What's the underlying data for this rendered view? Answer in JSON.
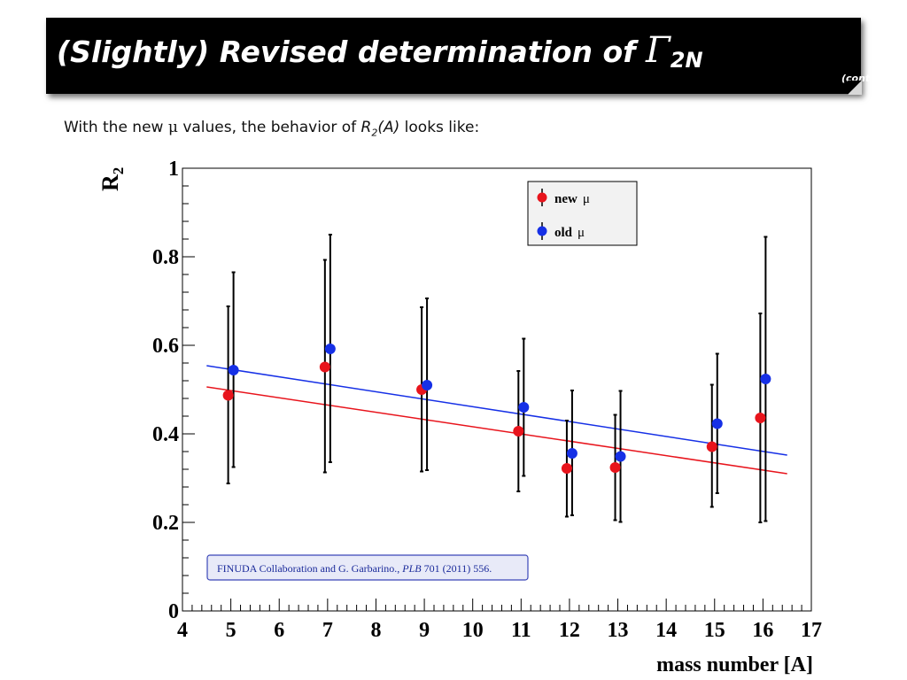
{
  "header": {
    "title_prefix": "(Slightly) Revised determination of ",
    "gamma_symbol": "Γ",
    "gamma_subscript": "2N",
    "contd": "(cont’d)"
  },
  "subtitle": {
    "part1": "With the new ",
    "mu": "μ",
    "part2": " values, the behavior of ",
    "r": "R",
    "r_sub": "2",
    "arg": "(A)",
    "part3": " looks like:"
  },
  "citation": {
    "authors": "FINUDA Collaboration and G. Garbarino., ",
    "journal": "PLB",
    "ref": " 701 (2011) 556."
  },
  "chart_data": {
    "type": "scatter",
    "ylabel": "R",
    "ylabel_sub": "2",
    "xlabel": "mass number [A]",
    "xlim": [
      4,
      17
    ],
    "ylim": [
      0,
      1
    ],
    "x_ticks": [
      "4",
      "5",
      "6",
      "7",
      "8",
      "9",
      "10",
      "11",
      "12",
      "13",
      "14",
      "15",
      "16",
      "17"
    ],
    "y_ticks": [
      "0",
      "0.2",
      "0.4",
      "0.6",
      "0.8",
      "1"
    ],
    "y_tick_values": [
      0,
      0.2,
      0.4,
      0.6,
      0.8,
      1
    ],
    "legend_position": "top-right",
    "series": [
      {
        "name": "new",
        "name_mu": "μ",
        "color": "#e8141c",
        "points": [
          {
            "x": 5,
            "y": 0.487,
            "lo": 0.288,
            "hi": 0.688
          },
          {
            "x": 7,
            "y": 0.551,
            "lo": 0.313,
            "hi": 0.793
          },
          {
            "x": 9,
            "y": 0.5,
            "lo": 0.315,
            "hi": 0.686
          },
          {
            "x": 11,
            "y": 0.406,
            "lo": 0.27,
            "hi": 0.542
          },
          {
            "x": 12,
            "y": 0.322,
            "lo": 0.213,
            "hi": 0.43
          },
          {
            "x": 13,
            "y": 0.324,
            "lo": 0.205,
            "hi": 0.443
          },
          {
            "x": 15,
            "y": 0.371,
            "lo": 0.235,
            "hi": 0.511
          },
          {
            "x": 16,
            "y": 0.436,
            "lo": 0.2,
            "hi": 0.672
          }
        ],
        "fit": [
          {
            "x": 4.5,
            "y": 0.506
          },
          {
            "x": 16.5,
            "y": 0.31
          }
        ]
      },
      {
        "name": "old",
        "name_mu": "μ",
        "color": "#1630e6",
        "points": [
          {
            "x": 5,
            "y": 0.544,
            "lo": 0.325,
            "hi": 0.765
          },
          {
            "x": 7,
            "y": 0.592,
            "lo": 0.336,
            "hi": 0.85
          },
          {
            "x": 9,
            "y": 0.51,
            "lo": 0.318,
            "hi": 0.706
          },
          {
            "x": 11,
            "y": 0.46,
            "lo": 0.305,
            "hi": 0.615
          },
          {
            "x": 12,
            "y": 0.356,
            "lo": 0.216,
            "hi": 0.498
          },
          {
            "x": 13,
            "y": 0.349,
            "lo": 0.201,
            "hi": 0.497
          },
          {
            "x": 15,
            "y": 0.423,
            "lo": 0.266,
            "hi": 0.581
          },
          {
            "x": 16,
            "y": 0.524,
            "lo": 0.203,
            "hi": 0.845
          }
        ],
        "fit": [
          {
            "x": 4.5,
            "y": 0.554
          },
          {
            "x": 16.5,
            "y": 0.352
          }
        ]
      }
    ]
  }
}
